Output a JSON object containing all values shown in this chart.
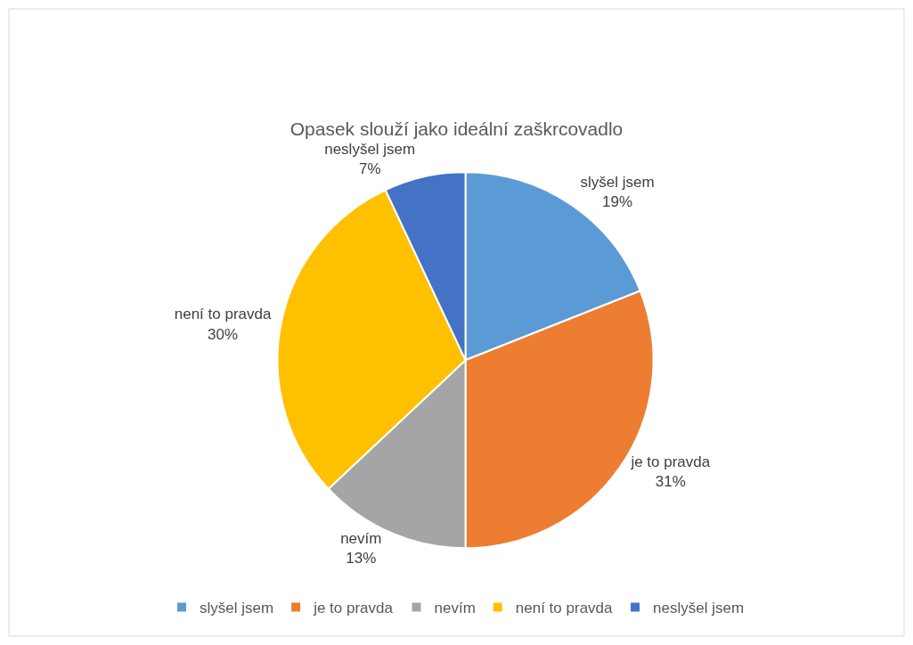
{
  "chart_data": {
    "type": "pie",
    "title": "Opasek slouží jako ideální zaškrcovadlo",
    "categories": [
      "slyšel jsem",
      "je to pravda",
      "nevím",
      "není to pravda",
      "neslyšel jsem"
    ],
    "values": [
      19,
      31,
      13,
      30,
      7
    ],
    "value_labels": [
      "19%",
      "31%",
      "13%",
      "30%",
      "7%"
    ],
    "colors": [
      "#5b9bd5",
      "#ed7d31",
      "#a5a5a5",
      "#ffc000",
      "#4472c4"
    ],
    "legend": "bottom"
  }
}
